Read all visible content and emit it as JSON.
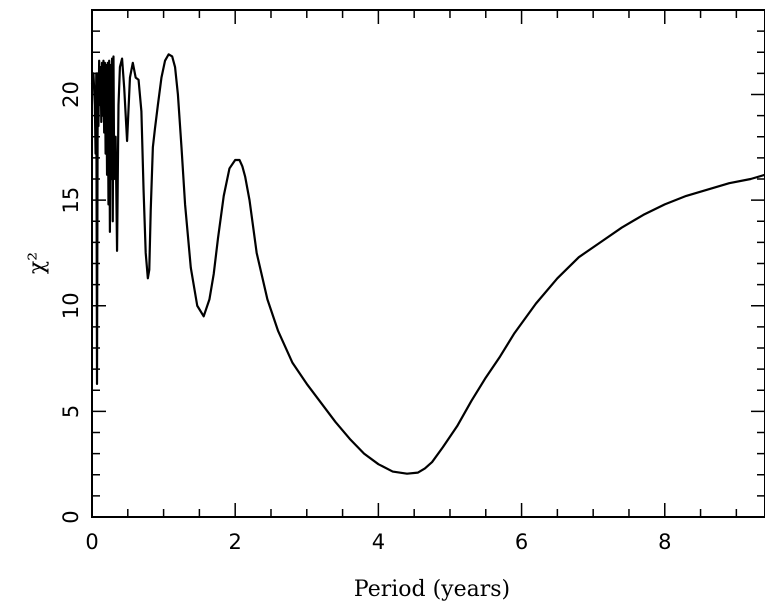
{
  "chart_data": {
    "type": "line",
    "title": "",
    "xlabel": "Period (years)",
    "ylabel": "χ²",
    "xlim": [
      0,
      9.4
    ],
    "ylim": [
      0,
      24
    ],
    "grid": false,
    "x_ticks": [
      0,
      2,
      4,
      6,
      8
    ],
    "y_ticks": [
      0,
      5,
      10,
      15,
      20
    ],
    "x_tick_labels": [
      "0",
      "2",
      "4",
      "6",
      "8"
    ],
    "y_tick_labels": [
      "0",
      "5",
      "10",
      "15",
      "20"
    ],
    "series": [
      {
        "x": [
          0.0,
          0.02,
          0.04,
          0.05,
          0.06,
          0.07,
          0.08,
          0.09,
          0.1,
          0.11,
          0.12,
          0.13,
          0.14,
          0.15,
          0.16,
          0.17,
          0.18,
          0.19,
          0.2,
          0.21,
          0.22,
          0.23,
          0.24,
          0.25,
          0.26,
          0.27,
          0.28,
          0.29,
          0.3,
          0.31,
          0.33,
          0.35,
          0.37,
          0.39,
          0.42,
          0.45,
          0.49,
          0.53,
          0.57,
          0.61,
          0.65,
          0.69,
          0.72,
          0.75,
          0.78,
          0.8,
          0.82,
          0.85,
          0.88,
          0.92,
          0.97,
          1.02,
          1.07,
          1.12,
          1.16,
          1.2,
          1.25,
          1.3,
          1.38,
          1.47,
          1.56,
          1.64,
          1.7,
          1.76,
          1.84,
          1.92,
          2.0,
          2.06,
          2.1,
          2.14,
          2.2,
          2.3,
          2.45,
          2.6,
          2.8,
          3.0,
          3.2,
          3.4,
          3.6,
          3.8,
          4.0,
          4.2,
          4.4,
          4.55,
          4.65,
          4.75,
          4.9,
          5.1,
          5.3,
          5.5,
          5.7,
          5.9,
          6.2,
          6.5,
          6.8,
          7.1,
          7.4,
          7.7,
          8.0,
          8.3,
          8.6,
          8.9,
          9.2,
          9.4
        ],
        "y": [
          20.5,
          21.0,
          19.5,
          17.2,
          21.0,
          6.3,
          21.0,
          18.5,
          21.6,
          19.5,
          21.3,
          18.7,
          21.5,
          19.0,
          21.6,
          18.2,
          21.5,
          17.2,
          21.4,
          16.2,
          21.5,
          14.8,
          21.6,
          13.5,
          21.4,
          16.0,
          21.7,
          14.0,
          21.8,
          16.0,
          18.0,
          12.6,
          19.5,
          21.3,
          21.7,
          20.3,
          17.8,
          20.8,
          21.5,
          20.8,
          20.7,
          19.2,
          15.5,
          12.5,
          11.3,
          11.7,
          14.5,
          17.5,
          18.4,
          19.5,
          20.8,
          21.6,
          21.9,
          21.8,
          21.3,
          20.0,
          17.5,
          14.8,
          11.8,
          10.0,
          9.5,
          10.3,
          11.5,
          13.2,
          15.2,
          16.5,
          16.9,
          16.9,
          16.6,
          16.1,
          15.0,
          12.5,
          10.3,
          8.8,
          7.3,
          6.3,
          5.4,
          4.5,
          3.7,
          3.0,
          2.5,
          2.15,
          2.05,
          2.1,
          2.3,
          2.6,
          3.3,
          4.3,
          5.5,
          6.6,
          7.6,
          8.7,
          10.1,
          11.3,
          12.3,
          13.0,
          13.7,
          14.3,
          14.8,
          15.2,
          15.5,
          15.8,
          16.0,
          16.2
        ]
      }
    ]
  }
}
